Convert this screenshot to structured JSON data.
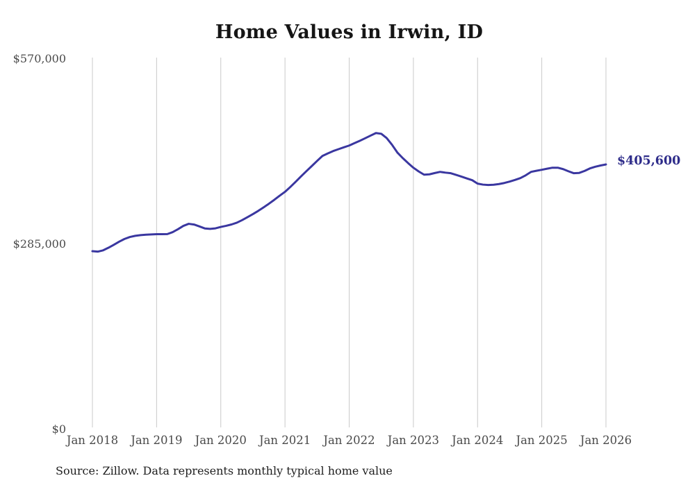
{
  "title": "Home Values in Irwin, ID",
  "source_note": "Source: Zillow. Data represents monthly typical home value",
  "colors": {
    "background": "#ffffff",
    "line": "#3a37a0",
    "end_label": "#2e2c8a",
    "gridline": "#c9c9c9",
    "title": "#151515",
    "axis_label": "#4a4a4a",
    "source": "#1d1d1d"
  },
  "chart_data": {
    "type": "line",
    "title": "Home Values in Irwin, ID",
    "xlabel": "",
    "ylabel": "",
    "ylim": [
      0,
      570000
    ],
    "grid": "vertical-only",
    "legend": "none",
    "frequency": "monthly",
    "x_range": [
      "Jan 2018",
      "Jan 2026"
    ],
    "x_tick_labels": [
      "Jan 2018",
      "Jan 2019",
      "Jan 2020",
      "Jan 2021",
      "Jan 2022",
      "Jan 2023",
      "Jan 2024",
      "Jan 2025",
      "Jan 2026"
    ],
    "y_ticks": [
      {
        "value": 0,
        "label": "$0"
      },
      {
        "value": 285000,
        "label": "$285,000"
      },
      {
        "value": 570000,
        "label": "$570,000"
      }
    ],
    "last_value_label": "$405,600",
    "last_value": 405600,
    "series": [
      {
        "name": "Typical home value",
        "values": [
          272200,
          271500,
          273500,
          277500,
          282000,
          286800,
          291000,
          294000,
          295800,
          296900,
          297600,
          298000,
          298300,
          298300,
          298500,
          301500,
          306000,
          311100,
          314300,
          313200,
          310300,
          307200,
          306500,
          307300,
          309500,
          311200,
          313300,
          316000,
          320000,
          324500,
          329200,
          334200,
          339600,
          345200,
          351200,
          357500,
          363500,
          371000,
          379000,
          387300,
          395300,
          403100,
          411000,
          418700,
          422600,
          426200,
          429100,
          432000,
          434700,
          438400,
          442100,
          446000,
          450000,
          453900,
          452800,
          446200,
          436000,
          424000,
          415500,
          407800,
          400600,
          394800,
          389900,
          390400,
          392400,
          394200,
          393000,
          392100,
          389600,
          386900,
          384100,
          381400,
          376100,
          374600,
          374000,
          374400,
          375500,
          377100,
          379300,
          381800,
          384600,
          388900,
          394200,
          395900,
          397400,
          399100,
          400600,
          400600,
          398400,
          395100,
          392100,
          392600,
          395600,
          399500,
          402100,
          404000,
          405600
        ]
      }
    ]
  }
}
